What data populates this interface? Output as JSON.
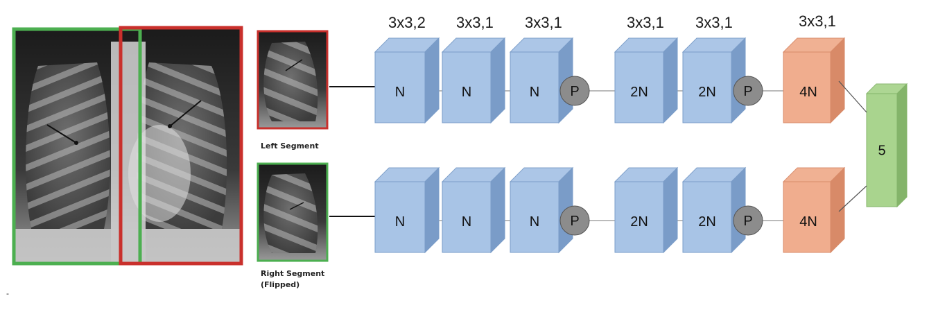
{
  "kernels": [
    "3x3,2",
    "3x3,1",
    "3x3,1",
    "3x3,1",
    "3x3,1",
    "3x3,1"
  ],
  "branches": [
    {
      "segment_label": "Left Segment",
      "segment_sublabel": "",
      "segment_border": "#c9302c",
      "blocks": [
        "N",
        "N",
        "N",
        "P",
        "2N",
        "2N",
        "P",
        "4N"
      ]
    },
    {
      "segment_label": "Right Segment",
      "segment_sublabel": "(Flipped)",
      "segment_border": "#4caf50",
      "blocks": [
        "N",
        "N",
        "N",
        "P",
        "2N",
        "2N",
        "P",
        "4N"
      ]
    }
  ],
  "output_label": "5",
  "stray_mark": "-",
  "colors": {
    "conv_block": "#a8c4e6",
    "conv_block_edge": "#7a9cc8",
    "final_block": "#f0ad8e",
    "final_block_edge": "#d88a68",
    "output_block": "#a9d48e",
    "output_block_edge": "#84b46a",
    "pool_node": "#8c8c8c",
    "left_frame": "#c9302c",
    "right_frame": "#4caf50"
  }
}
